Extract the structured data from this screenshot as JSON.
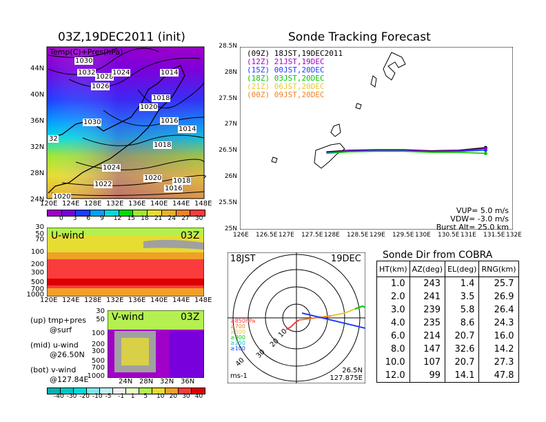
{
  "left_map": {
    "title": "03Z,19DEC2011 (init)",
    "label": "Temp(C)+Pres(hPa)",
    "x_ticks": [
      "120E",
      "124E",
      "128E",
      "132E",
      "136E",
      "140E",
      "144E",
      "148E"
    ],
    "y_ticks": [
      "44N",
      "40N",
      "36N",
      "32N",
      "28N",
      "24N"
    ],
    "pressure_labels": [
      "1030",
      "1032",
      "1028",
      "1024",
      "1014",
      "1026",
      "1018",
      "1020",
      "1030",
      "1016",
      "1014",
      "32",
      "1018",
      "1024",
      "1020",
      "1018",
      "1022",
      "1016",
      "1020"
    ],
    "colorbar_labels": [
      "0",
      "3",
      "6",
      "9",
      "12",
      "15",
      "18",
      "21",
      "24",
      "27",
      "30"
    ],
    "colorbar_colors": [
      "#a000c8",
      "#7800dc",
      "#1e3cff",
      "#00a0ff",
      "#00dcdc",
      "#00dc00",
      "#a0e632",
      "#e6dc32",
      "#e6af2d",
      "#f08228",
      "#fa3c3c"
    ]
  },
  "uwind": {
    "label": "U-wind",
    "time": "03Z",
    "y_ticks": [
      "30",
      "50",
      "70",
      "100",
      "200",
      "300",
      "500",
      "700",
      "1000"
    ],
    "x_ticks": [
      "120E",
      "124E",
      "128E",
      "132E",
      "136E",
      "140E",
      "144E",
      "148E"
    ]
  },
  "vwind": {
    "label": "V-wind",
    "time": "03Z",
    "y_ticks": [
      "30",
      "50",
      "100",
      "200",
      "300",
      "500",
      "700",
      "1000"
    ],
    "x_ticks": [
      "24N",
      "28N",
      "32N",
      "36N"
    ]
  },
  "notes": {
    "up": "(up) tmp+pres",
    "up2": "@surf",
    "mid": "(mid) u-wind",
    "mid2": "@26.50N",
    "bot": "(bot) v-wind",
    "bot2": "@127.84E"
  },
  "wind_colorbar": {
    "labels": [
      "-40",
      "-30",
      "-20",
      "-10",
      "-5",
      "-1",
      "1",
      "5",
      "10",
      "20",
      "30",
      "40"
    ],
    "colors": [
      "#00b4b4",
      "#00c8c8",
      "#00dcdc",
      "#82e6e6",
      "#bef0f0",
      "#f0f0f0",
      "#e6ffc8",
      "#b4f050",
      "#e6dc32",
      "#f0a028",
      "#fa3c3c",
      "#dc0000"
    ]
  },
  "tracking": {
    "title": "Sonde Tracking Forecast",
    "x_ticks": [
      "126E",
      "126.5E",
      "127E",
      "127.5E",
      "128E",
      "128.5E",
      "129E",
      "129.5E",
      "130E",
      "130.5E",
      "131E",
      "131.5E",
      "132E"
    ],
    "y_ticks": [
      "28.5N",
      "28N",
      "27.5N",
      "27N",
      "26.5N",
      "26N",
      "25.5N",
      "25N"
    ],
    "legend": [
      {
        "z": "(09Z)",
        "t": "18JST,19DEC2011",
        "color": "#000000"
      },
      {
        "z": "(12Z)",
        "t": "21JST,19DEC",
        "color": "#a000c8"
      },
      {
        "z": "(15Z)",
        "t": "00JST,20DEC",
        "color": "#1e3cff"
      },
      {
        "z": "(18Z)",
        "t": "03JST,20DEC",
        "color": "#00c800"
      },
      {
        "z": "(21Z)",
        "t": "06JST,20DEC",
        "color": "#e6c832"
      },
      {
        "z": "(00Z)",
        "t": "09JST,20DEC",
        "color": "#f08228"
      }
    ],
    "vup": "VUP= 5.0 m/s",
    "vdw": "VDW= -3.0 m/s",
    "burst": "Burst Alt= 25.0 km"
  },
  "chart_data": [
    {
      "type": "line",
      "title": "Sonde Tracking Forecast",
      "xlim": [
        126,
        132
      ],
      "ylim": [
        25,
        28.5
      ],
      "series": [
        {
          "name": "18JST,19DEC2011",
          "color": "#000000",
          "x": [
            131.4,
            130.8,
            130.2,
            129.6,
            129.0,
            128.4,
            127.9
          ],
          "y": [
            26.57,
            26.52,
            26.51,
            26.53,
            26.53,
            26.52,
            26.49
          ]
        },
        {
          "name": "21JST,19DEC",
          "color": "#a000c8",
          "x": [
            131.4,
            130.8,
            130.2,
            129.6,
            129.0,
            128.4,
            127.9
          ],
          "y": [
            26.55,
            26.51,
            26.5,
            26.52,
            26.52,
            26.51,
            26.48
          ]
        },
        {
          "name": "00JST,20DEC",
          "color": "#1e3cff",
          "x": [
            131.4,
            130.8,
            130.2,
            129.6,
            129.0,
            128.4,
            127.9
          ],
          "y": [
            26.52,
            26.5,
            26.49,
            26.51,
            26.51,
            26.5,
            26.47
          ]
        },
        {
          "name": "03JST,20DEC",
          "color": "#00c800",
          "x": [
            131.4,
            130.8,
            130.2,
            129.6,
            129.0,
            128.4,
            127.9
          ],
          "y": [
            26.46,
            26.48,
            26.48,
            26.5,
            26.5,
            26.49,
            26.46
          ]
        }
      ]
    },
    {
      "type": "table",
      "title": "Sonde Dir from COBRA",
      "columns": [
        "HT(km)",
        "AZ(deg)",
        "EL(deg)",
        "RNG(km)"
      ],
      "rows": [
        [
          "1.0",
          "243",
          "1.4",
          "25.7"
        ],
        [
          "2.0",
          "241",
          "3.5",
          "26.9"
        ],
        [
          "3.0",
          "239",
          "5.8",
          "26.4"
        ],
        [
          "4.0",
          "235",
          "8.6",
          "24.3"
        ],
        [
          "6.0",
          "214",
          "20.7",
          "16.0"
        ],
        [
          "8.0",
          "147",
          "32.6",
          "14.2"
        ],
        [
          "10.0",
          "107",
          "20.7",
          "27.3"
        ],
        [
          "12.0",
          "99",
          "14.1",
          "47.8"
        ]
      ]
    }
  ],
  "polar": {
    "top_left": "18JST",
    "top_right": "19DEC",
    "bottom_left": "ms-1",
    "bottom_right1": "26.5N",
    "bottom_right2": "127.875E",
    "ring_labels": [
      "10",
      "20",
      "30",
      "40"
    ],
    "levels": [
      {
        "label": "≥850hPa",
        "color": "#fa3c3c"
      },
      {
        "label": "≥700",
        "color": "#f08228"
      },
      {
        "label": "≥500",
        "color": "#e6c832"
      },
      {
        "label": "≥300",
        "color": "#00c800"
      },
      {
        "label": "≥250",
        "color": "#00c8c8"
      },
      {
        "label": "≥100",
        "color": "#1e3cff"
      }
    ]
  }
}
